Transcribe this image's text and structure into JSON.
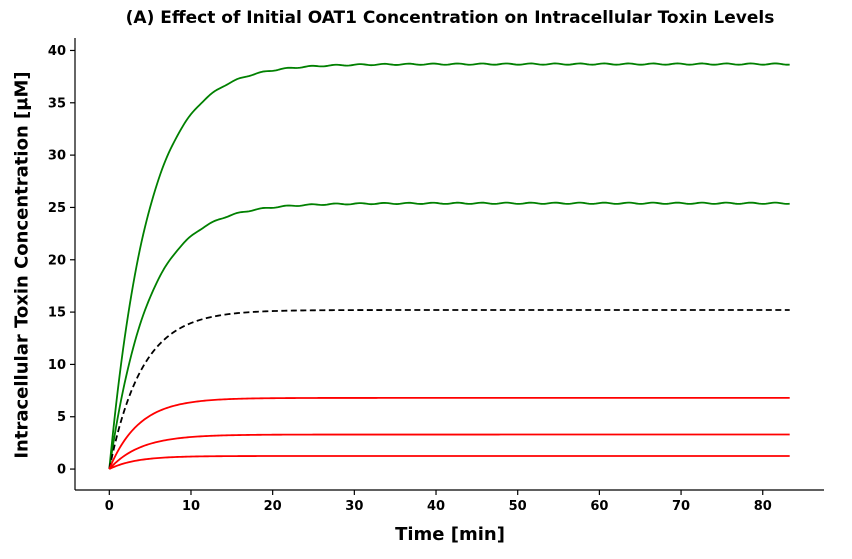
{
  "chart_data": {
    "type": "line",
    "title": "(A) Effect of Initial OAT1 Concentration on Intracellular Toxin Levels",
    "xlabel": "Time [min]",
    "ylabel": "Intracellular Toxin Concentration [μM]",
    "xlim": [
      -4.2,
      87.5
    ],
    "ylim": [
      -2,
      41
    ],
    "xticks": [
      0,
      10,
      20,
      30,
      40,
      50,
      60,
      70,
      80
    ],
    "yticks": [
      0,
      5,
      10,
      15,
      20,
      25,
      30,
      35,
      40
    ],
    "grid": false,
    "legend": "none",
    "series": [
      {
        "color": "#008000",
        "dash": "solid",
        "plateau": 38.7,
        "tau": 4.8,
        "t_end": 83.3
      },
      {
        "color": "#008000",
        "dash": "solid",
        "plateau": 25.4,
        "tau": 4.8,
        "t_end": 83.3
      },
      {
        "color": "#000000",
        "dash": "dashed",
        "plateau": 15.2,
        "tau": 4.0,
        "t_end": 83.3
      },
      {
        "color": "#ff0000",
        "dash": "solid",
        "plateau": 6.8,
        "tau": 3.6,
        "t_end": 83.3
      },
      {
        "color": "#ff0000",
        "dash": "solid",
        "plateau": 3.3,
        "tau": 3.8,
        "t_end": 83.3
      },
      {
        "color": "#ff0000",
        "dash": "solid",
        "plateau": 1.25,
        "tau": 3.2,
        "t_end": 83.3
      }
    ]
  }
}
